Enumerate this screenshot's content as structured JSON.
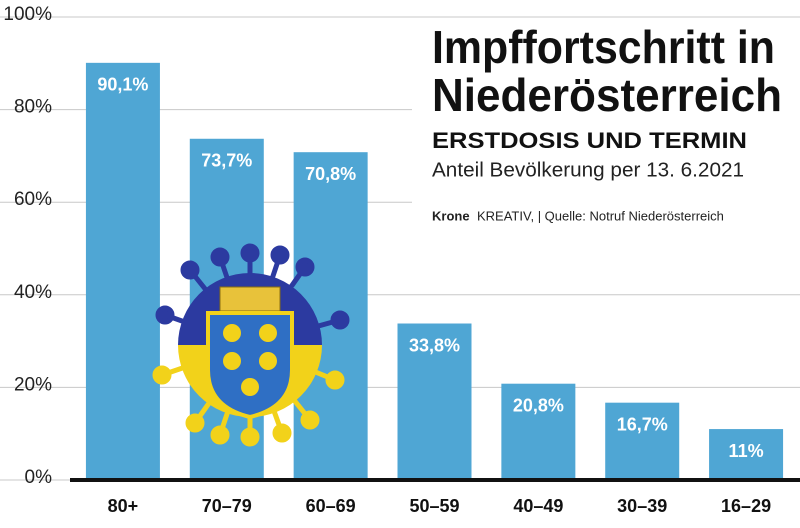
{
  "chart_data": {
    "type": "bar",
    "title": [
      "Impffortschritt in",
      "Niederösterreich"
    ],
    "subtitle": "ERSTDOSIS UND TERMIN",
    "description": "Anteil Bevölkerung per 13. 6.2021",
    "credit": [
      "Krone",
      "KREATIV,  |  Quelle: Notruf Niederösterreich"
    ],
    "categories": [
      "80+",
      "70–79",
      "60–69",
      "50–59",
      "40–49",
      "30–39",
      "16–29"
    ],
    "values": [
      90.1,
      73.7,
      70.8,
      33.8,
      20.8,
      16.7,
      11
    ],
    "value_labels": [
      "90,1%",
      "73,7%",
      "70,8%",
      "33,8%",
      "20,8%",
      "16,7%",
      "11%"
    ],
    "color": "#4fa6d4",
    "ylim": [
      0,
      100
    ],
    "yticks": [
      {
        "value": 0,
        "label": "0%"
      },
      {
        "value": 20,
        "label": "20%"
      },
      {
        "value": 40,
        "label": "40%"
      },
      {
        "value": 60,
        "label": "60%"
      },
      {
        "value": 80,
        "label": "80%"
      },
      {
        "value": 100,
        "label": "100%"
      }
    ],
    "grid": true
  }
}
